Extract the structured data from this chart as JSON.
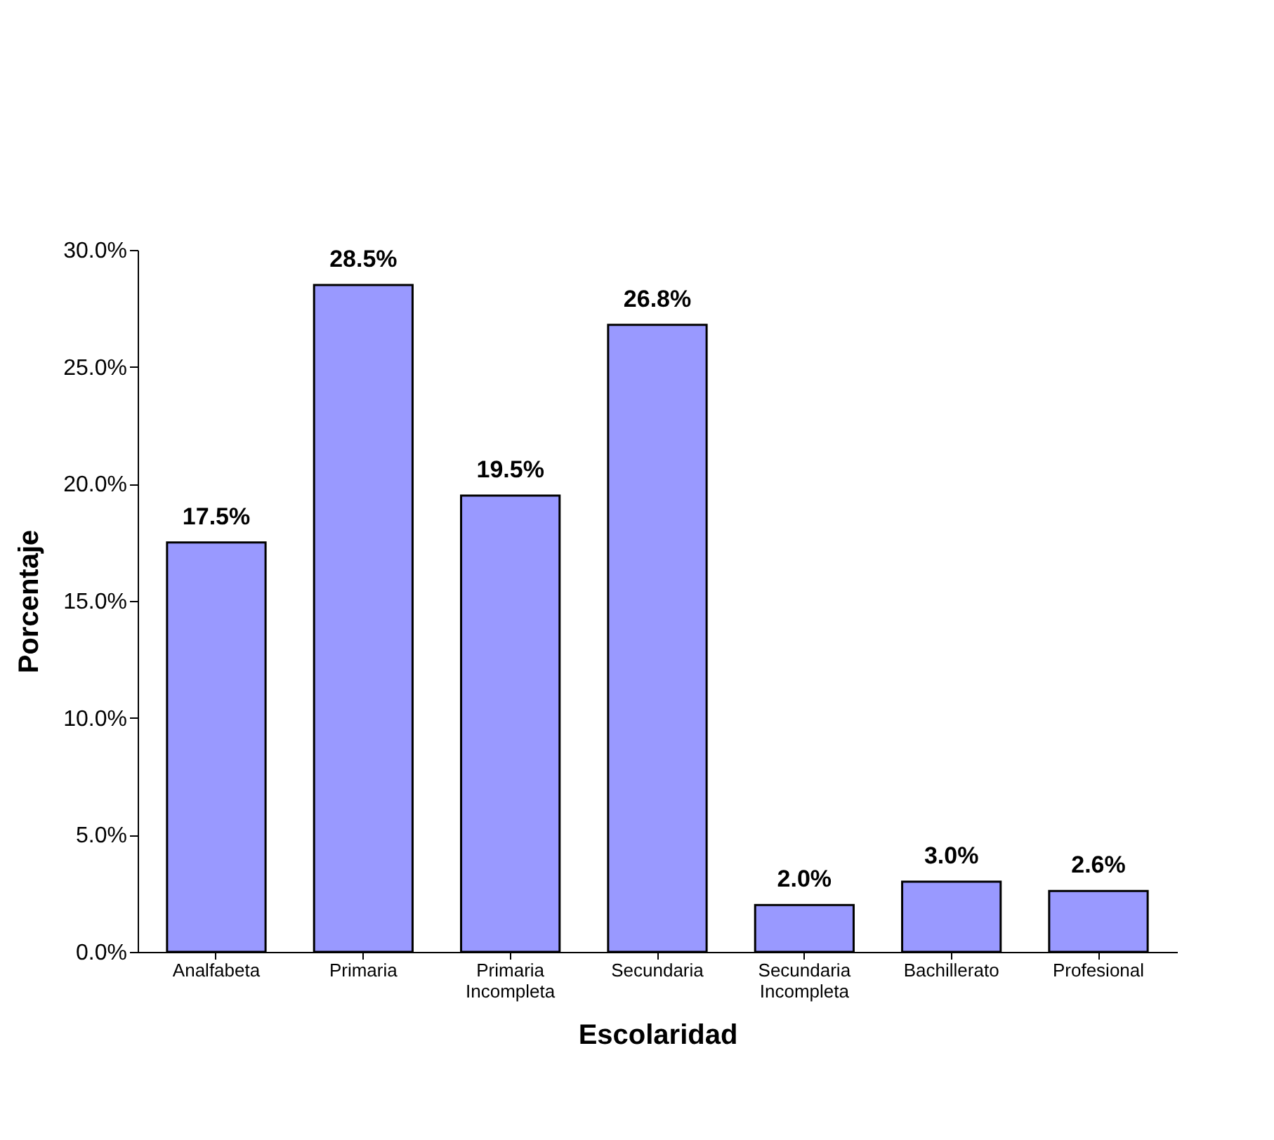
{
  "chart_data": {
    "type": "bar",
    "xlabel": "Escolaridad",
    "ylabel": "Porcentaje",
    "categories": [
      "Analfabeta",
      "Primaria",
      "Primaria Incompleta",
      "Secundaria",
      "Secundaria Incompleta",
      "Bachillerato",
      "Profesional"
    ],
    "values": [
      17.5,
      28.5,
      19.5,
      26.8,
      2.0,
      3.0,
      2.6
    ],
    "value_labels": [
      "17.5%",
      "28.5%",
      "19.5%",
      "26.8%",
      "2.0%",
      "3.0%",
      "2.6%"
    ],
    "color": "#9999ff",
    "ylim": [
      0,
      30
    ],
    "yticks": [
      {
        "value": 0,
        "label": "0.0%"
      },
      {
        "value": 5,
        "label": "5.0%"
      },
      {
        "value": 10,
        "label": "10.0%"
      },
      {
        "value": 15,
        "label": "15.0%"
      },
      {
        "value": 20,
        "label": "20.0%"
      },
      {
        "value": 25,
        "label": "25.0%"
      },
      {
        "value": 30,
        "label": "30.0%"
      }
    ],
    "grid": false
  }
}
